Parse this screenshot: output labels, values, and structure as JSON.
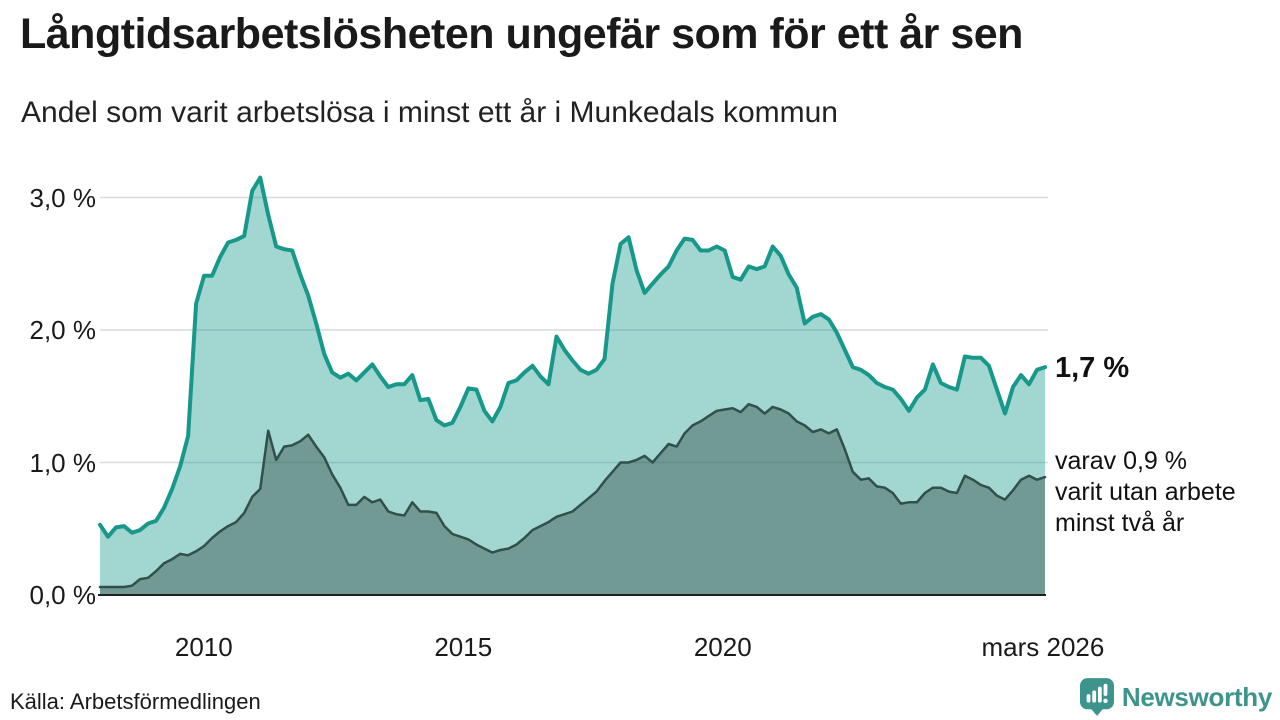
{
  "header": {
    "title": "Långtidsarbetslösheten ungefär som för ett år sen",
    "subtitle": "Andel som varit arbetslösa i minst ett år i Munkedals kommun"
  },
  "chart_data": {
    "type": "area",
    "title": "Långtidsarbetslösheten ungefär som för ett år sen",
    "subtitle": "Andel som varit arbetslösa i minst ett år i Munkedals kommun",
    "unit": "%",
    "x_range": {
      "start": 2008.0,
      "end": 2026.21
    },
    "ylim": [
      0,
      3.2
    ],
    "grid": "horizontal",
    "x_ticks": [
      {
        "label": "2010",
        "x": 2010.0
      },
      {
        "label": "2015",
        "x": 2015.0
      },
      {
        "label": "2020",
        "x": 2020.0
      },
      {
        "label": "mars 2026",
        "x": 2026.17
      }
    ],
    "y_ticks": [
      {
        "label": "0,0 %",
        "value": 0
      },
      {
        "label": "1,0 %",
        "value": 1
      },
      {
        "label": "2,0 %",
        "value": 2
      },
      {
        "label": "3,0 %",
        "value": 3
      }
    ],
    "series": [
      {
        "name": "Andel som varit arbetslösa i minst ett år",
        "line_color": "#17988b",
        "line_width": 4,
        "fill_color": "#17988b",
        "fill_opacity": 0.4,
        "latest_value": 1.7,
        "values": [
          0.53,
          0.44,
          0.51,
          0.52,
          0.47,
          0.49,
          0.54,
          0.56,
          0.66,
          0.8,
          0.97,
          1.2,
          2.2,
          2.41,
          2.41,
          2.55,
          2.66,
          2.68,
          2.71,
          3.05,
          3.15,
          2.87,
          2.63,
          2.61,
          2.6,
          2.42,
          2.26,
          2.05,
          1.82,
          1.68,
          1.64,
          1.67,
          1.62,
          1.68,
          1.74,
          1.65,
          1.57,
          1.59,
          1.59,
          1.66,
          1.47,
          1.48,
          1.32,
          1.28,
          1.3,
          1.42,
          1.56,
          1.55,
          1.39,
          1.31,
          1.42,
          1.6,
          1.62,
          1.68,
          1.73,
          1.65,
          1.59,
          1.95,
          1.85,
          1.77,
          1.7,
          1.67,
          1.7,
          1.78,
          2.35,
          2.65,
          2.7,
          2.45,
          2.28,
          2.35,
          2.42,
          2.48,
          2.6,
          2.69,
          2.68,
          2.6,
          2.6,
          2.63,
          2.6,
          2.4,
          2.38,
          2.48,
          2.46,
          2.48,
          2.63,
          2.56,
          2.42,
          2.32,
          2.05,
          2.1,
          2.12,
          2.08,
          1.98,
          1.85,
          1.72,
          1.7,
          1.66,
          1.6,
          1.57,
          1.55,
          1.48,
          1.39,
          1.49,
          1.55,
          1.74,
          1.6,
          1.57,
          1.55,
          1.8,
          1.79,
          1.79,
          1.73,
          1.55,
          1.37,
          1.57,
          1.66,
          1.59,
          1.7,
          1.72
        ]
      },
      {
        "name": "varav utan arbete minst två år",
        "line_color": "#31504b",
        "line_width": 2.5,
        "fill_color": "#35514c",
        "fill_opacity": 0.45,
        "latest_value": 0.9,
        "values": [
          0.06,
          0.06,
          0.06,
          0.06,
          0.07,
          0.12,
          0.13,
          0.18,
          0.24,
          0.27,
          0.31,
          0.3,
          0.33,
          0.37,
          0.43,
          0.48,
          0.52,
          0.55,
          0.62,
          0.74,
          0.8,
          1.24,
          1.02,
          1.12,
          1.13,
          1.16,
          1.21,
          1.12,
          1.04,
          0.91,
          0.81,
          0.68,
          0.68,
          0.74,
          0.7,
          0.72,
          0.63,
          0.61,
          0.6,
          0.7,
          0.63,
          0.63,
          0.62,
          0.52,
          0.46,
          0.44,
          0.42,
          0.38,
          0.35,
          0.32,
          0.34,
          0.35,
          0.38,
          0.43,
          0.49,
          0.52,
          0.55,
          0.59,
          0.61,
          0.63,
          0.68,
          0.73,
          0.78,
          0.86,
          0.93,
          1.0,
          1.0,
          1.02,
          1.05,
          1.0,
          1.07,
          1.14,
          1.12,
          1.22,
          1.28,
          1.31,
          1.35,
          1.39,
          1.4,
          1.41,
          1.38,
          1.44,
          1.42,
          1.37,
          1.42,
          1.4,
          1.37,
          1.31,
          1.28,
          1.23,
          1.25,
          1.22,
          1.25,
          1.1,
          0.93,
          0.87,
          0.88,
          0.82,
          0.81,
          0.77,
          0.69,
          0.7,
          0.7,
          0.77,
          0.81,
          0.81,
          0.78,
          0.77,
          0.9,
          0.87,
          0.83,
          0.81,
          0.75,
          0.72,
          0.79,
          0.87,
          0.9,
          0.87,
          0.89
        ]
      }
    ],
    "annotations": {
      "latest_label": "1,7 %",
      "secondary_label": "varav 0,9 %\nvarit utan arbete\nminst två år"
    },
    "grid_color": "#d9dcdc",
    "axis_color": "#1f1f1f",
    "legend_position": "none"
  },
  "footer": {
    "source": "Källa: Arbetsförmedlingen",
    "brand": "Newsworthy"
  },
  "colors": {
    "accent": "#17988b",
    "brand": "#3c948c"
  }
}
